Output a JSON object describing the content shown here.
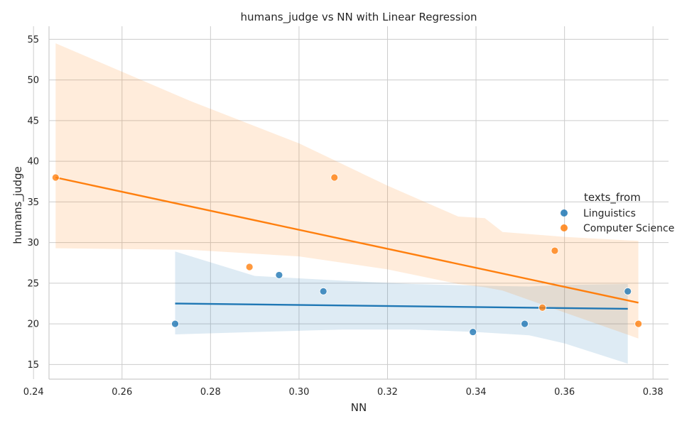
{
  "chart_data": {
    "type": "scatter",
    "title": "humans_judge vs NN with Linear Regression",
    "xlabel": "NN",
    "ylabel": "humans_judge",
    "xlim": [
      0.2435,
      0.3835
    ],
    "ylim": [
      13.2,
      56.6
    ],
    "xticks": [
      0.24,
      0.26,
      0.28,
      0.3,
      0.32,
      0.34,
      0.36,
      0.38
    ],
    "xtick_labels": [
      "0.24",
      "0.26",
      "0.28",
      "0.30",
      "0.32",
      "0.34",
      "0.36",
      "0.38"
    ],
    "yticks": [
      15,
      20,
      25,
      30,
      35,
      40,
      45,
      50,
      55
    ],
    "ytick_labels": [
      "15",
      "20",
      "25",
      "30",
      "35",
      "40",
      "45",
      "50",
      "55"
    ],
    "grid": true,
    "legend_title": "texts_from",
    "legend_position": "right",
    "series": [
      {
        "name": "Linguistics",
        "color": "#1f77b4",
        "points": [
          {
            "x": 0.272,
            "y": 20
          },
          {
            "x": 0.2955,
            "y": 26
          },
          {
            "x": 0.3055,
            "y": 24
          },
          {
            "x": 0.3393,
            "y": 19
          },
          {
            "x": 0.351,
            "y": 20
          },
          {
            "x": 0.3743,
            "y": 24
          }
        ],
        "regression": {
          "x": [
            0.272,
            0.3743
          ],
          "y": [
            22.5,
            21.85
          ]
        },
        "confidence_band": {
          "x": [
            0.272,
            0.29,
            0.31,
            0.3255,
            0.34,
            0.352,
            0.36,
            0.3743
          ],
          "upper": [
            28.9,
            25.9,
            25.3,
            24.9,
            24.7,
            24.6,
            24.8,
            24.9
          ],
          "lower": [
            18.7,
            19.0,
            19.3,
            19.3,
            19.0,
            18.6,
            17.6,
            15.1
          ]
        }
      },
      {
        "name": "Computer Science",
        "color": "#ff7f0e",
        "points": [
          {
            "x": 0.245,
            "y": 38
          },
          {
            "x": 0.2888,
            "y": 27
          },
          {
            "x": 0.308,
            "y": 38
          },
          {
            "x": 0.355,
            "y": 22
          },
          {
            "x": 0.3578,
            "y": 29
          },
          {
            "x": 0.3767,
            "y": 20
          }
        ],
        "regression": {
          "x": [
            0.245,
            0.3767
          ],
          "y": [
            38.0,
            22.6
          ]
        },
        "confidence_band": {
          "x": [
            0.245,
            0.2755,
            0.3,
            0.32,
            0.336,
            0.342,
            0.346,
            0.36,
            0.3767
          ],
          "upper": [
            54.5,
            47.4,
            42.2,
            37.0,
            33.2,
            33.0,
            31.3,
            30.7,
            30.2
          ],
          "lower": [
            29.3,
            29.1,
            28.3,
            26.7,
            24.9,
            24.5,
            24.1,
            21.4,
            18.2
          ]
        }
      }
    ]
  }
}
